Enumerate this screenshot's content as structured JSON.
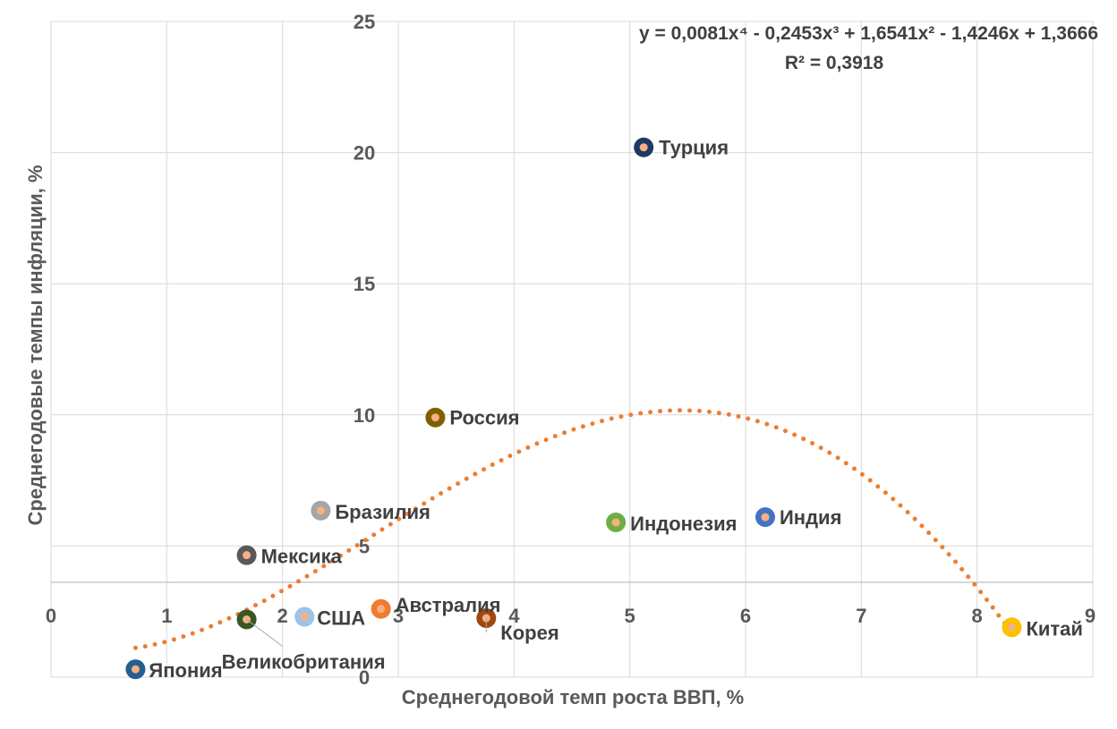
{
  "chart_data": {
    "type": "scatter",
    "xlabel": "Среднегодовой темп роста ВВП, %",
    "ylabel": "Среднегодовые  темпы инфляции, %",
    "xlim": [
      0,
      9
    ],
    "ylim": [
      0,
      25
    ],
    "x_ticks": [
      "0",
      "1",
      "2",
      "3",
      "4",
      "5",
      "6",
      "7",
      "8",
      "9"
    ],
    "y_ticks": [
      "0",
      "5",
      "10",
      "15",
      "20",
      "25"
    ],
    "grid": true,
    "trendline": {
      "type": "polynomial",
      "degree": 4,
      "coefficients": [
        0.0081,
        -0.2453,
        1.6541,
        -1.4246,
        1.3666
      ],
      "x_range": [
        0.73,
        8.3
      ],
      "equation_text": "y = 0,0081x⁴ - 0,2453x³ + 1,6541x² - 1,4246x + 1,3666",
      "r2_text": "R² = 0,3918",
      "color": "#ED7D31"
    },
    "points": [
      {
        "name": "Турция",
        "x": 5.12,
        "y": 20.2,
        "color": "#203864"
      },
      {
        "name": "Россия",
        "x": 3.32,
        "y": 9.9,
        "color": "#7F6000"
      },
      {
        "name": "Бразилия",
        "x": 2.33,
        "y": 6.35,
        "color": "#A5A5A5"
      },
      {
        "name": "Мексика",
        "x": 1.69,
        "y": 4.65,
        "color": "#595959"
      },
      {
        "name": "Индонезия",
        "x": 4.88,
        "y": 5.9,
        "color": "#70AD47"
      },
      {
        "name": "Индия",
        "x": 6.17,
        "y": 6.1,
        "color": "#4472C4"
      },
      {
        "name": "Австралия",
        "x": 2.85,
        "y": 2.6,
        "color": "#ED7D31"
      },
      {
        "name": "США",
        "x": 2.19,
        "y": 2.3,
        "color": "#9DC3E6"
      },
      {
        "name": "Великобритания",
        "x": 1.69,
        "y": 2.2,
        "color": "#375623"
      },
      {
        "name": "Корея",
        "x": 3.76,
        "y": 2.25,
        "color": "#9E480E"
      },
      {
        "name": "Япония",
        "x": 0.73,
        "y": 0.3,
        "color": "#255E91"
      },
      {
        "name": "Китай",
        "x": 8.3,
        "y": 1.9,
        "color": "#FFC000"
      }
    ]
  }
}
